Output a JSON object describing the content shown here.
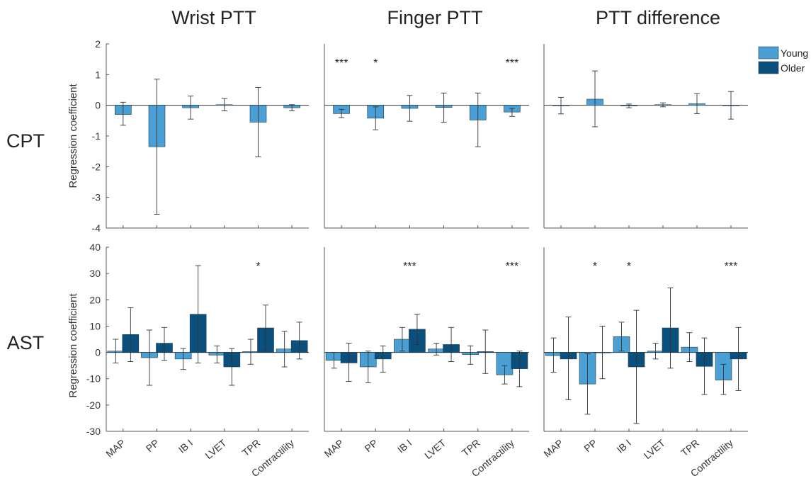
{
  "chart_data": {
    "type": "bar",
    "columns": [
      "Wrist PTT",
      "Finger PTT",
      "PTT difference"
    ],
    "rows": [
      "CPT",
      "AST"
    ],
    "ylabel": "Regression coefficient",
    "categories": [
      "MAP",
      "PP",
      "IB I",
      "LVET",
      "TPR",
      "Contractility"
    ],
    "legend": {
      "position": "top-right",
      "entries": [
        "Young",
        "Older"
      ]
    },
    "colors": {
      "Young": "#4aa0d4",
      "Older": "#0b4f7c",
      "edge": "#1e3a4f",
      "axis": "#555555"
    },
    "panels": [
      {
        "row": "CPT",
        "column": "Wrist PTT",
        "ylim": [
          -4,
          2
        ],
        "yticks": [
          2,
          1,
          0,
          -1,
          -2,
          -3,
          -4
        ],
        "series": [
          {
            "name": "Young",
            "values": [
              -0.3,
              -1.35,
              -0.08,
              0.02,
              -0.55,
              -0.08
            ],
            "err_low": [
              -0.65,
              -3.55,
              -0.45,
              -0.18,
              -1.68,
              -0.18
            ],
            "err_high": [
              0.1,
              0.85,
              0.3,
              0.22,
              0.58,
              0.02
            ]
          }
        ],
        "significance": [
          "",
          "",
          "",
          "",
          "",
          ""
        ]
      },
      {
        "row": "CPT",
        "column": "Finger PTT",
        "ylim": [
          -4,
          2
        ],
        "yticks": [
          2,
          1,
          0,
          -1,
          -2,
          -3,
          -4
        ],
        "series": [
          {
            "name": "Young",
            "values": [
              -0.27,
              -0.42,
              -0.1,
              -0.07,
              -0.48,
              -0.22
            ],
            "err_low": [
              -0.4,
              -0.8,
              -0.52,
              -0.55,
              -1.35,
              -0.36
            ],
            "err_high": [
              -0.13,
              -0.05,
              0.32,
              0.4,
              0.4,
              -0.1
            ]
          }
        ],
        "significance": [
          "***",
          "*",
          "",
          "",
          "",
          "***"
        ]
      },
      {
        "row": "CPT",
        "column": "PTT difference",
        "ylim": [
          -4,
          2
        ],
        "yticks": [
          2,
          1,
          0,
          -1,
          -2,
          -3,
          -4
        ],
        "series": [
          {
            "name": "Young",
            "values": [
              0.0,
              0.2,
              -0.02,
              0.02,
              0.05,
              0.0
            ],
            "err_low": [
              -0.28,
              -0.7,
              -0.08,
              -0.05,
              -0.27,
              -0.45
            ],
            "err_high": [
              0.26,
              1.12,
              0.04,
              0.08,
              0.38,
              0.45
            ]
          }
        ],
        "significance": [
          "",
          "",
          "",
          "",
          "",
          ""
        ]
      },
      {
        "row": "AST",
        "column": "Wrist PTT",
        "ylim": [
          -30,
          40
        ],
        "yticks": [
          40,
          30,
          20,
          10,
          0,
          -10,
          -20,
          -30
        ],
        "series": [
          {
            "name": "Young",
            "values": [
              0.5,
              -2.0,
              -2.5,
              -1.0,
              0.3,
              1.3
            ],
            "err_low": [
              -4.0,
              -12.5,
              -6.5,
              -4.0,
              -4.5,
              -5.5
            ],
            "err_high": [
              5.0,
              8.5,
              1.5,
              2.5,
              5.0,
              8.0
            ]
          },
          {
            "name": "Older",
            "values": [
              6.8,
              3.5,
              14.5,
              -5.5,
              9.3,
              4.5
            ],
            "err_low": [
              -3.5,
              -3.0,
              -4.0,
              -12.5,
              0.5,
              -2.5
            ],
            "err_high": [
              17.0,
              9.5,
              33.0,
              1.5,
              18.0,
              11.5
            ]
          }
        ],
        "significance": [
          "",
          "",
          "",
          "",
          "*",
          ""
        ]
      },
      {
        "row": "AST",
        "column": "Finger PTT",
        "ylim": [
          -30,
          40
        ],
        "yticks": [
          40,
          30,
          20,
          10,
          0,
          -10,
          -20,
          -30
        ],
        "series": [
          {
            "name": "Young",
            "values": [
              -3.0,
              -5.5,
              5.0,
              1.3,
              -0.8,
              -8.5
            ],
            "err_low": [
              -6.0,
              -11.5,
              0.5,
              -1.0,
              -4.5,
              -12.0
            ],
            "err_high": [
              0.0,
              0.5,
              9.5,
              3.5,
              2.5,
              -5.0
            ]
          },
          {
            "name": "Older",
            "values": [
              -4.0,
              -2.5,
              8.8,
              3.0,
              0.3,
              -6.2
            ],
            "err_low": [
              -11.0,
              -7.5,
              3.0,
              -3.5,
              -8.0,
              -13.0
            ],
            "err_high": [
              3.5,
              2.5,
              14.5,
              9.5,
              8.5,
              0.5
            ]
          }
        ],
        "significance": [
          "",
          "",
          "***",
          "",
          "",
          "***"
        ]
      },
      {
        "row": "AST",
        "column": "PTT difference",
        "ylim": [
          -30,
          40
        ],
        "yticks": [
          40,
          30,
          20,
          10,
          0,
          -10,
          -20,
          -30
        ],
        "series": [
          {
            "name": "Young",
            "values": [
              -1.2,
              -12.0,
              6.0,
              0.5,
              2.0,
              -10.5
            ],
            "err_low": [
              -7.5,
              -23.5,
              0.5,
              -2.5,
              -3.5,
              -16.0
            ],
            "err_high": [
              5.5,
              -0.5,
              11.5,
              3.5,
              7.5,
              -4.5
            ]
          },
          {
            "name": "Older",
            "values": [
              -2.5,
              0.0,
              -5.5,
              9.3,
              -5.3,
              -2.5
            ],
            "err_low": [
              -18.0,
              -10.0,
              -27.0,
              -6.0,
              -16.0,
              -14.5
            ],
            "err_high": [
              13.5,
              10.0,
              16.0,
              24.5,
              5.5,
              9.5
            ]
          }
        ],
        "significance": [
          "",
          "*",
          "*",
          "",
          "",
          "***"
        ]
      }
    ]
  }
}
